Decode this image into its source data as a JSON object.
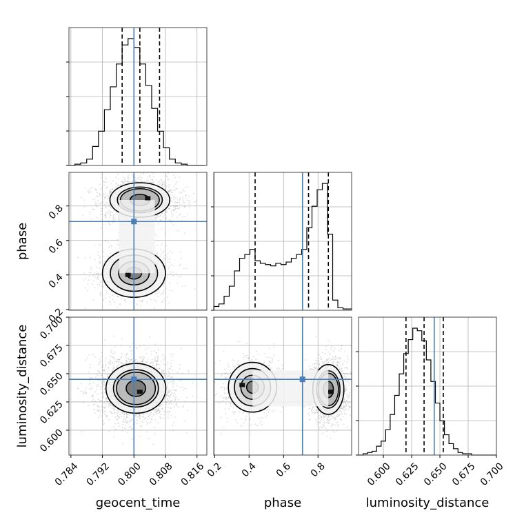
{
  "chart_data": {
    "type": "corner",
    "parameters": [
      "geocent_time",
      "phase",
      "luminosity_distance"
    ],
    "truths": {
      "geocent_time": 0.8,
      "phase": 0.71,
      "luminosity_distance": 0.645
    },
    "quantiles_dashed": {
      "geocent_time": [
        0.797,
        0.8015,
        0.8065
      ],
      "phase": [
        0.435,
        0.745,
        0.86
      ],
      "luminosity_distance": [
        0.62,
        0.636,
        0.653
      ]
    },
    "axes": {
      "geocent_time": {
        "range": [
          0.7835,
          0.8185
        ],
        "ticks": [
          0.784,
          0.792,
          0.8,
          0.808,
          0.816
        ],
        "tick_labels": [
          "0.784",
          "0.792",
          "0.800",
          "0.808",
          "0.816"
        ]
      },
      "phase": {
        "range": [
          0.195,
          0.995
        ],
        "ticks": [
          0.2,
          0.4,
          0.6,
          0.8
        ],
        "tick_labels": [
          "0.2",
          "0.4",
          "0.6",
          "0.8"
        ]
      },
      "luminosity_distance": {
        "range": [
          0.578,
          0.7
        ],
        "ticks": [
          0.6,
          0.625,
          0.65,
          0.675,
          0.7
        ],
        "tick_labels": [
          "0.600",
          "0.625",
          "0.650",
          "0.675",
          "0.700"
        ]
      }
    },
    "histograms": {
      "geocent_time": {
        "edges": [
          0.7835,
          0.785,
          0.7865,
          0.788,
          0.7895,
          0.791,
          0.7925,
          0.794,
          0.7955,
          0.797,
          0.7985,
          0.8,
          0.8015,
          0.803,
          0.8045,
          0.806,
          0.8075,
          0.809,
          0.8105,
          0.812,
          0.8135,
          0.815,
          0.8165,
          0.818
        ],
        "counts": [
          0,
          0.01,
          0.02,
          0.05,
          0.15,
          0.27,
          0.44,
          0.62,
          0.8,
          0.95,
          1.0,
          0.93,
          0.8,
          0.63,
          0.45,
          0.27,
          0.14,
          0.05,
          0.02,
          0.01,
          0,
          0,
          0
        ]
      },
      "phase": {
        "edges": [
          0.195,
          0.225,
          0.255,
          0.285,
          0.315,
          0.345,
          0.375,
          0.405,
          0.435,
          0.465,
          0.495,
          0.525,
          0.555,
          0.585,
          0.615,
          0.645,
          0.675,
          0.705,
          0.735,
          0.765,
          0.795,
          0.825,
          0.855,
          0.885,
          0.915,
          0.945,
          0.975,
          0.995
        ],
        "counts": [
          0.03,
          0.05,
          0.11,
          0.19,
          0.31,
          0.41,
          0.44,
          0.48,
          0.39,
          0.37,
          0.36,
          0.35,
          0.37,
          0.36,
          0.38,
          0.41,
          0.44,
          0.48,
          0.65,
          0.82,
          0.95,
          1.0,
          0.6,
          0.08,
          0.02,
          0.01,
          0.01
        ]
      },
      "luminosity_distance": {
        "edges": [
          0.578,
          0.582,
          0.586,
          0.59,
          0.594,
          0.598,
          0.602,
          0.606,
          0.61,
          0.614,
          0.618,
          0.622,
          0.626,
          0.63,
          0.634,
          0.638,
          0.642,
          0.646,
          0.65,
          0.654,
          0.658,
          0.662,
          0.666,
          0.67,
          0.674,
          0.678,
          0.682,
          0.686,
          0.69,
          0.694,
          0.7
        ],
        "counts": [
          0,
          0.01,
          0.02,
          0.03,
          0.07,
          0.11,
          0.2,
          0.32,
          0.47,
          0.64,
          0.8,
          0.91,
          1.0,
          0.98,
          0.9,
          0.75,
          0.58,
          0.41,
          0.27,
          0.16,
          0.09,
          0.05,
          0.02,
          0.01,
          0.01,
          0,
          0,
          0,
          0,
          0
        ]
      }
    },
    "joint": {
      "phase_vs_geocent_time": {
        "modes": [
          {
            "x": 0.8015,
            "y": 0.835,
            "sx": 0.0038,
            "sy": 0.05,
            "w": 1.0
          },
          {
            "x": 0.8,
            "y": 0.41,
            "sx": 0.004,
            "sy": 0.07,
            "w": 0.45
          }
        ],
        "contour_levels": [
          0.12,
          0.39,
          0.68,
          0.86
        ],
        "marked_points": [
          {
            "x": 0.8035,
            "y": 0.845
          },
          {
            "x": 0.7985,
            "y": 0.4
          }
        ]
      },
      "luminosity_distance_vs_geocent_time": {
        "modes": [
          {
            "x": 0.8005,
            "y": 0.637,
            "sx": 0.0038,
            "sy": 0.011,
            "w": 1.0
          }
        ],
        "contour_levels": [
          0.12,
          0.39,
          0.68,
          0.86
        ],
        "marked_points": [
          {
            "x": 0.8015,
            "y": 0.634
          }
        ]
      },
      "luminosity_distance_vs_phase": {
        "modes": [
          {
            "x": 0.86,
            "y": 0.636,
            "sx": 0.045,
            "sy": 0.011,
            "w": 1.0
          },
          {
            "x": 0.42,
            "y": 0.638,
            "sx": 0.07,
            "sy": 0.011,
            "w": 0.45
          }
        ],
        "contour_levels": [
          0.12,
          0.39,
          0.68,
          0.86
        ],
        "marked_points": [
          {
            "x": 0.875,
            "y": 0.634
          },
          {
            "x": 0.36,
            "y": 0.64
          }
        ]
      }
    },
    "grid": true,
    "colors": {
      "truth": "#4a7fb7",
      "hist": "#000000",
      "quantile": "#000000",
      "grid": "#b0b0b0",
      "scatter": "#9a9a9a"
    }
  }
}
